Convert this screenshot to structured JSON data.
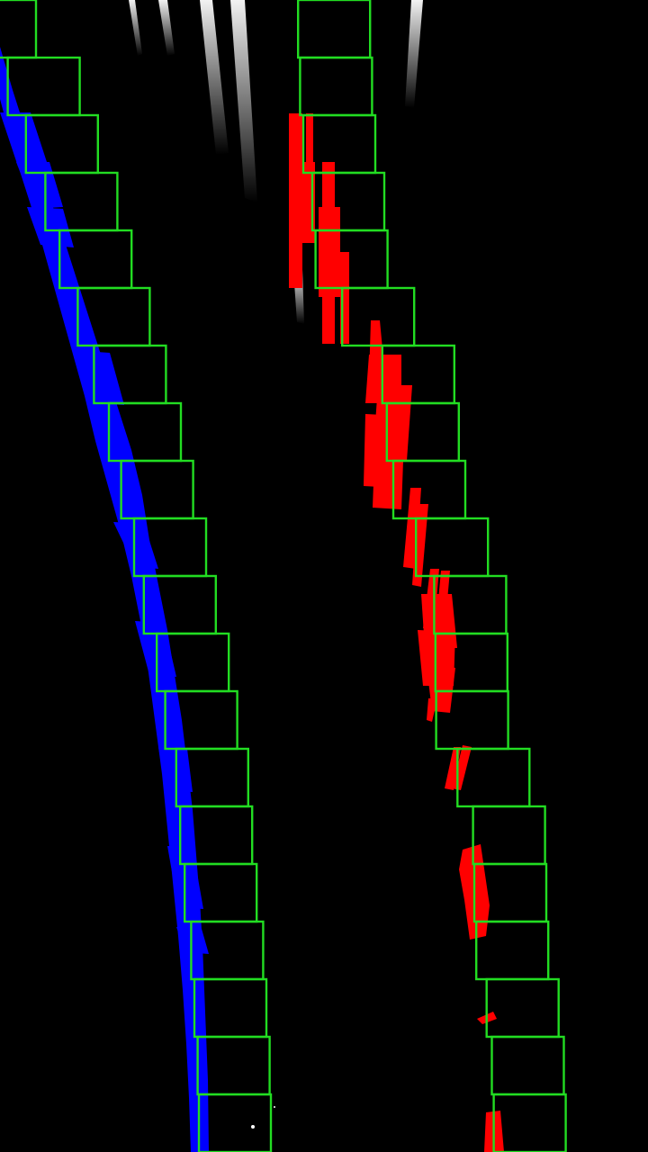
{
  "view": {
    "description_type": "binary bird's-eye lane mask with sliding-window search",
    "background_color": "#000000"
  },
  "lanes": {
    "window_count": 20,
    "window_color": "#22dd22",
    "left": {
      "pixel_color": "#0000ff",
      "window_centers": [
        0.0,
        0.012,
        0.04,
        0.07,
        0.092,
        0.12,
        0.145,
        0.168,
        0.187,
        0.207,
        0.222,
        0.242,
        0.255,
        0.272,
        0.278,
        0.285,
        0.295,
        0.3,
        0.305,
        0.307
      ]
    },
    "right": {
      "pixel_color": "#ff0000",
      "window_centers": [
        0.46,
        0.463,
        0.468,
        0.482,
        0.487,
        0.528,
        0.59,
        0.597,
        0.607,
        0.642,
        0.67,
        0.672,
        0.673,
        0.706,
        0.73,
        0.732,
        0.735,
        0.751,
        0.759,
        0.762
      ]
    },
    "unassigned_pixel_color": "#ffffff"
  }
}
